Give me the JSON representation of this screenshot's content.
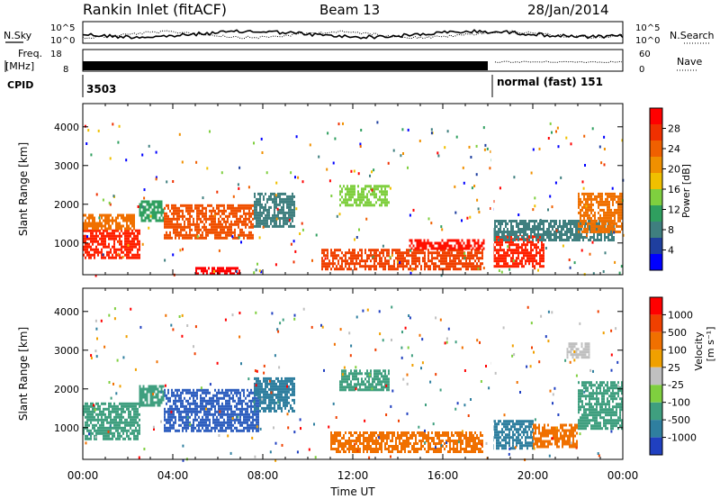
{
  "header": {
    "station": "Rankin Inlet (fitACF)",
    "beam": "Beam 13",
    "date": "28/Jan/2014"
  },
  "status_panel": {
    "nsky_label": "N.Sky",
    "nsky_ticks": [
      "10^5",
      "10^0"
    ],
    "nsearch_label": "N.Search",
    "freq_label_1": "Freq.",
    "freq_label_2": "[MHz]",
    "freq_ticks": [
      "8",
      "18"
    ],
    "nave_label": "Nave",
    "nave_ticks": [
      "60",
      "0"
    ],
    "cpid_label": "CPID",
    "cpid_segments": [
      {
        "text": "3503",
        "start_hour": 0,
        "end_hour": 18
      },
      {
        "text": "normal (fast) 151",
        "start_hour": 18.2,
        "end_hour": 24
      }
    ]
  },
  "chart_data": [
    {
      "type": "heatmap",
      "title": "",
      "ylabel": "Slant Range [km]",
      "xlabel": "",
      "xlim": [
        0,
        24
      ],
      "ylim": [
        180,
        4600
      ],
      "yticks": [
        1000,
        2000,
        3000,
        4000
      ],
      "colorbar": {
        "label": "Power [dB]",
        "ticks": [
          28,
          24,
          20,
          16,
          12,
          8,
          4
        ],
        "colors": [
          "#0000ff",
          "#1f3f9f",
          "#3f7f7f",
          "#2f9f5f",
          "#7fcf3f",
          "#f0c000",
          "#f09000",
          "#f06000",
          "#f03000",
          "#ff0000"
        ]
      },
      "regions": [
        {
          "h0": 0.0,
          "h1": 2.5,
          "r0": 650,
          "r1": 1350,
          "c": "#ff2000"
        },
        {
          "h0": 0.0,
          "h1": 2.3,
          "r0": 1350,
          "r1": 1750,
          "c": "#f07000"
        },
        {
          "h0": 2.5,
          "h1": 3.6,
          "r0": 1600,
          "r1": 2100,
          "c": "#2f9f5f"
        },
        {
          "h0": 3.6,
          "h1": 7.6,
          "r0": 1100,
          "r1": 2000,
          "c": "#f05000"
        },
        {
          "h0": 7.6,
          "h1": 9.4,
          "r0": 1400,
          "r1": 2300,
          "c": "#3f7f7f"
        },
        {
          "h0": 11.4,
          "h1": 13.6,
          "r0": 2000,
          "r1": 2500,
          "c": "#7fcf3f"
        },
        {
          "h0": 10.6,
          "h1": 17.8,
          "r0": 350,
          "r1": 850,
          "c": "#f04000"
        },
        {
          "h0": 14.5,
          "h1": 17.8,
          "r0": 850,
          "r1": 1100,
          "c": "#ff1000"
        },
        {
          "h0": 18.2,
          "h1": 20.5,
          "r0": 400,
          "r1": 1200,
          "c": "#ff2000"
        },
        {
          "h0": 18.2,
          "h1": 23.6,
          "r0": 1100,
          "r1": 1600,
          "c": "#3f7f7f"
        },
        {
          "h0": 22.0,
          "h1": 24.0,
          "r0": 1300,
          "r1": 2300,
          "c": "#f07000"
        },
        {
          "h0": 5.0,
          "h1": 7.0,
          "r0": 220,
          "r1": 380,
          "c": "#ff0000"
        }
      ]
    },
    {
      "type": "heatmap",
      "title": "",
      "ylabel": "Slant Range [km]",
      "xlabel": "Time UT",
      "xlim": [
        0,
        24
      ],
      "ylim": [
        180,
        4600
      ],
      "xticks": [
        "00:00",
        "04:00",
        "08:00",
        "12:00",
        "16:00",
        "20:00",
        "00:00"
      ],
      "yticks": [
        1000,
        2000,
        3000,
        4000
      ],
      "colorbar": {
        "label_main": "Velocity",
        "label_unit": "[m s⁻¹]",
        "ticks": [
          1000,
          500,
          100,
          25,
          -25,
          -100,
          -500,
          -1000
        ],
        "colors": [
          "#2040c0",
          "#2f7f9f",
          "#3f9f7f",
          "#7fcf3f",
          "#c0c0c0",
          "#f0a000",
          "#f07000",
          "#f04000",
          "#ff0000"
        ]
      },
      "regions": [
        {
          "h0": 0.0,
          "h1": 2.5,
          "r0": 700,
          "r1": 1650,
          "c": "#3f9f7f"
        },
        {
          "h0": 3.6,
          "h1": 7.8,
          "r0": 950,
          "r1": 2000,
          "c": "#2f5fbf"
        },
        {
          "h0": 2.5,
          "h1": 3.6,
          "r0": 1600,
          "r1": 2100,
          "c": "#3f9f7f"
        },
        {
          "h0": 7.6,
          "h1": 9.4,
          "r0": 1400,
          "r1": 2300,
          "c": "#2f7f9f"
        },
        {
          "h0": 11.4,
          "h1": 13.6,
          "r0": 1950,
          "r1": 2500,
          "c": "#3f9f7f"
        },
        {
          "h0": 11.0,
          "h1": 17.8,
          "r0": 400,
          "r1": 900,
          "c": "#f07000"
        },
        {
          "h0": 18.2,
          "h1": 20.0,
          "r0": 500,
          "r1": 1200,
          "c": "#2f7f9f"
        },
        {
          "h0": 20.0,
          "h1": 22.0,
          "r0": 500,
          "r1": 1100,
          "c": "#f07000"
        },
        {
          "h0": 22.0,
          "h1": 24.0,
          "r0": 1000,
          "r1": 2200,
          "c": "#3f9f7f"
        },
        {
          "h0": 21.5,
          "h1": 22.5,
          "r0": 2800,
          "r1": 3200,
          "c": "#c0c0c0"
        }
      ]
    }
  ]
}
